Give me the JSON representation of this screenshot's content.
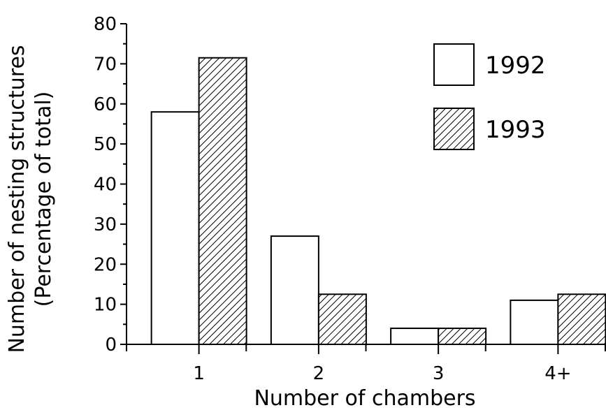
{
  "chart_data": {
    "type": "bar",
    "categories": [
      "1",
      "2",
      "3",
      "4+"
    ],
    "series": [
      {
        "name": "1992",
        "values": [
          58,
          27,
          4,
          11
        ],
        "fill": "#ffffff"
      },
      {
        "name": "1993",
        "values": [
          71.5,
          12.5,
          4,
          12.5
        ],
        "fill": "hatched"
      }
    ],
    "xlabel": "Number of chambers",
    "ylabel": [
      "Number of nesting structures",
      "(Percentage of total)"
    ],
    "ylim": [
      0,
      80
    ],
    "yticks": [
      0,
      10,
      20,
      30,
      40,
      50,
      60,
      70,
      80
    ],
    "grid": false,
    "legend_position": "top-right",
    "colors": {
      "stroke": "#000000",
      "background": "#ffffff"
    }
  }
}
